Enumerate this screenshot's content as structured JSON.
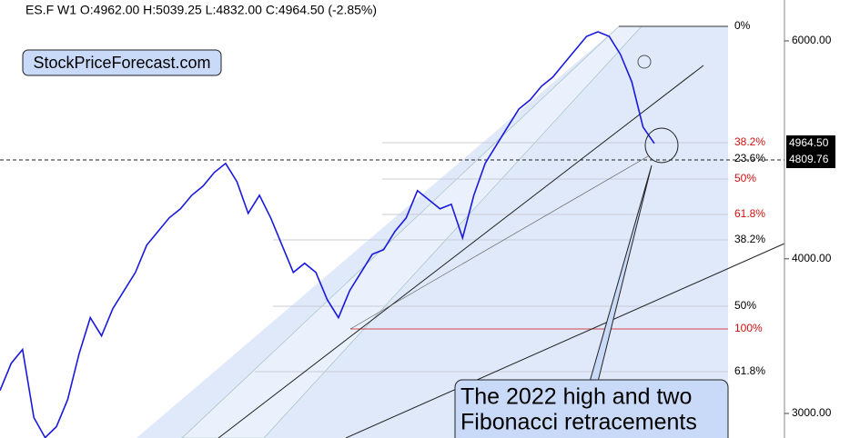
{
  "chart_data": {
    "type": "line",
    "header": "ES.F  W1  O:4962.00  H:5039.25  L:4832.00  C:4964.50  (-2.85%)",
    "watermark": "StockPriceForecast.com",
    "annotation": [
      "The 2022 high and two",
      "Fibonacci retracements"
    ],
    "series": [
      {
        "name": "ES.F",
        "color": "#1a1adc",
        "values": [
          3131,
          3294,
          3379,
          2977,
          2868,
          2927,
          3079,
          3350,
          3585,
          3466,
          3646,
          3771,
          3900,
          4103,
          4209,
          4316,
          4390,
          4502,
          4579,
          4697,
          4777,
          4618,
          4353,
          4502,
          4316,
          4103,
          3900,
          3967,
          3900,
          3708,
          3585,
          3771,
          3900,
          4034,
          4068,
          4209,
          4316,
          4541,
          4465,
          4390,
          4427,
          4159,
          4502,
          4777,
          4941,
          5111,
          5286,
          5376,
          5514,
          5608,
          5752,
          5900,
          6051,
          6102,
          6051,
          5850,
          5561,
          5111,
          4958
        ]
      }
    ],
    "log_scale": true,
    "ylim": [
      2866,
      6474
    ],
    "yticks": [
      {
        "value": 3000,
        "label": "3000.00"
      },
      {
        "value": 4000,
        "label": "4000.00"
      },
      {
        "value": 6000,
        "label": "6000.00"
      }
    ],
    "price_labels": [
      "4964.50",
      "4809.76"
    ],
    "fib_labels": [
      {
        "text": "0%",
        "color": "#000000"
      },
      {
        "text": "38.2%",
        "color": "#d01010"
      },
      {
        "text": "23.6%",
        "color": "#000000"
      },
      {
        "text": "50%",
        "color": "#d01010"
      },
      {
        "text": "61.8%",
        "color": "#d01010"
      },
      {
        "text": "38.2%",
        "color": "#000000"
      },
      {
        "text": "50%",
        "color": "#000000"
      },
      {
        "text": "100%",
        "color": "#d01010"
      },
      {
        "text": "61.8%",
        "color": "#000000"
      }
    ]
  }
}
